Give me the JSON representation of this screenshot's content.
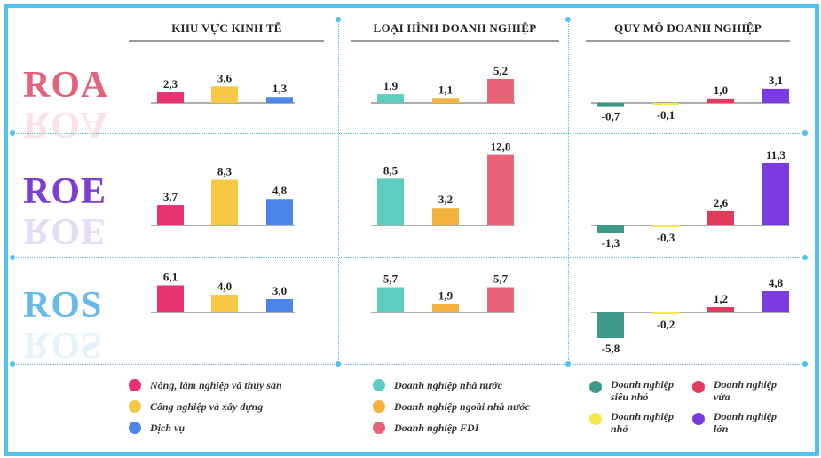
{
  "columns": [
    {
      "title": "KHU VỰC KINH TẾ"
    },
    {
      "title": "LOẠI HÌNH DOANH NGHIỆP"
    },
    {
      "title": "QUY MÔ DOANH NGHIỆP"
    }
  ],
  "metrics": [
    {
      "label": "ROA",
      "color": "#e5637a"
    },
    {
      "label": "ROE",
      "color": "#7b3fd6"
    },
    {
      "label": "ROS",
      "color": "#69b9ec"
    }
  ],
  "chart_data": [
    {
      "type": "bar",
      "metric": "ROA",
      "group": "KHU VỰC KINH TẾ",
      "categories": [
        "Nông, lâm nghiệp và thủy sản",
        "Công nghiệp và xây dựng",
        "Dịch vụ"
      ],
      "values": [
        2.3,
        3.6,
        1.3
      ],
      "data_labels": [
        "2,3",
        "3,6",
        "1,3"
      ],
      "colors": [
        "#e8336e",
        "#f6c945",
        "#4c86ea"
      ]
    },
    {
      "type": "bar",
      "metric": "ROA",
      "group": "LOẠI HÌNH DOANH NGHIỆP",
      "categories": [
        "Doanh nghiệp nhà nước",
        "Doanh nghiệp ngoài nhà nước",
        "Doanh nghiệp FDI"
      ],
      "values": [
        1.9,
        1.1,
        5.2
      ],
      "data_labels": [
        "1,9",
        "1,1",
        "5,2"
      ],
      "colors": [
        "#5ecdc0",
        "#f2b23d",
        "#ea6276"
      ]
    },
    {
      "type": "bar",
      "metric": "ROA",
      "group": "QUY MÔ DOANH NGHIỆP",
      "categories": [
        "Doanh nghiệp siêu nhỏ",
        "Doanh nghiệp nhỏ",
        "Doanh nghiệp vừa",
        "Doanh nghiệp lớn"
      ],
      "values": [
        -0.7,
        -0.1,
        1.0,
        3.1
      ],
      "data_labels": [
        "-0,7",
        "-0,1",
        "1,0",
        "3,1"
      ],
      "colors": [
        "#3d9a8a",
        "#f5e64a",
        "#e23a5a",
        "#7b3be0"
      ]
    },
    {
      "type": "bar",
      "metric": "ROE",
      "group": "KHU VỰC KINH TẾ",
      "categories": [
        "Nông, lâm nghiệp và thủy sản",
        "Công nghiệp và xây dựng",
        "Dịch vụ"
      ],
      "values": [
        3.7,
        8.3,
        4.8
      ],
      "data_labels": [
        "3,7",
        "8,3",
        "4,8"
      ],
      "colors": [
        "#e8336e",
        "#f6c945",
        "#4c86ea"
      ]
    },
    {
      "type": "bar",
      "metric": "ROE",
      "group": "LOẠI HÌNH DOANH NGHIỆP",
      "categories": [
        "Doanh nghiệp nhà nước",
        "Doanh nghiệp ngoài nhà nước",
        "Doanh nghiệp FDI"
      ],
      "values": [
        8.5,
        3.2,
        12.8
      ],
      "data_labels": [
        "8,5",
        "3,2",
        "12,8"
      ],
      "colors": [
        "#5ecdc0",
        "#f2b23d",
        "#ea6276"
      ]
    },
    {
      "type": "bar",
      "metric": "ROE",
      "group": "QUY MÔ DOANH NGHIỆP",
      "categories": [
        "Doanh nghiệp siêu nhỏ",
        "Doanh nghiệp nhỏ",
        "Doanh nghiệp vừa",
        "Doanh nghiệp lớn"
      ],
      "values": [
        -1.3,
        -0.3,
        2.6,
        11.3
      ],
      "data_labels": [
        "-1,3",
        "-0,3",
        "2,6",
        "11,3"
      ],
      "colors": [
        "#3d9a8a",
        "#f5e64a",
        "#e23a5a",
        "#7b3be0"
      ]
    },
    {
      "type": "bar",
      "metric": "ROS",
      "group": "KHU VỰC KINH TẾ",
      "categories": [
        "Nông, lâm nghiệp và thủy sản",
        "Công nghiệp và xây dựng",
        "Dịch vụ"
      ],
      "values": [
        6.1,
        4.0,
        3.0
      ],
      "data_labels": [
        "6,1",
        "4,0",
        "3,0"
      ],
      "colors": [
        "#e8336e",
        "#f6c945",
        "#4c86ea"
      ]
    },
    {
      "type": "bar",
      "metric": "ROS",
      "group": "LOẠI HÌNH DOANH NGHIỆP",
      "categories": [
        "Doanh nghiệp nhà nước",
        "Doanh nghiệp ngoài nhà nước",
        "Doanh nghiệp FDI"
      ],
      "values": [
        5.7,
        1.9,
        5.7
      ],
      "data_labels": [
        "5,7",
        "1,9",
        "5,7"
      ],
      "colors": [
        "#5ecdc0",
        "#f2b23d",
        "#ea6276"
      ]
    },
    {
      "type": "bar",
      "metric": "ROS",
      "group": "QUY MÔ DOANH NGHIỆP",
      "categories": [
        "Doanh nghiệp siêu nhỏ",
        "Doanh nghiệp nhỏ",
        "Doanh nghiệp vừa",
        "Doanh nghiệp lớn"
      ],
      "values": [
        -5.8,
        -0.2,
        1.2,
        4.8
      ],
      "data_labels": [
        "-5,8",
        "-0,2",
        "1,2",
        "4,8"
      ],
      "colors": [
        "#3d9a8a",
        "#f5e64a",
        "#e23a5a",
        "#7b3be0"
      ]
    }
  ],
  "legend": [
    {
      "label": "Nông, lâm nghiệp và thủy sản",
      "color": "#e8336e"
    },
    {
      "label": "Công nghiệp và xây dựng",
      "color": "#f6c945"
    },
    {
      "label": "Dịch vụ",
      "color": "#4c86ea"
    },
    {
      "label": "Doanh nghiệp nhà nước",
      "color": "#5ecdc0"
    },
    {
      "label": "Doanh nghiệp ngoài nhà nước",
      "color": "#f2b23d"
    },
    {
      "label": "Doanh nghiệp FDI",
      "color": "#ea6276"
    },
    {
      "label": "Doanh nghiệp siêu nhỏ",
      "color": "#3d9a8a"
    },
    {
      "label": "Doanh nghiệp vừa",
      "color": "#e23a5a"
    },
    {
      "label": "Doanh nghiệp nhỏ",
      "color": "#f5e64a"
    },
    {
      "label": "Doanh nghiệp lớn",
      "color": "#7b3be0"
    }
  ]
}
